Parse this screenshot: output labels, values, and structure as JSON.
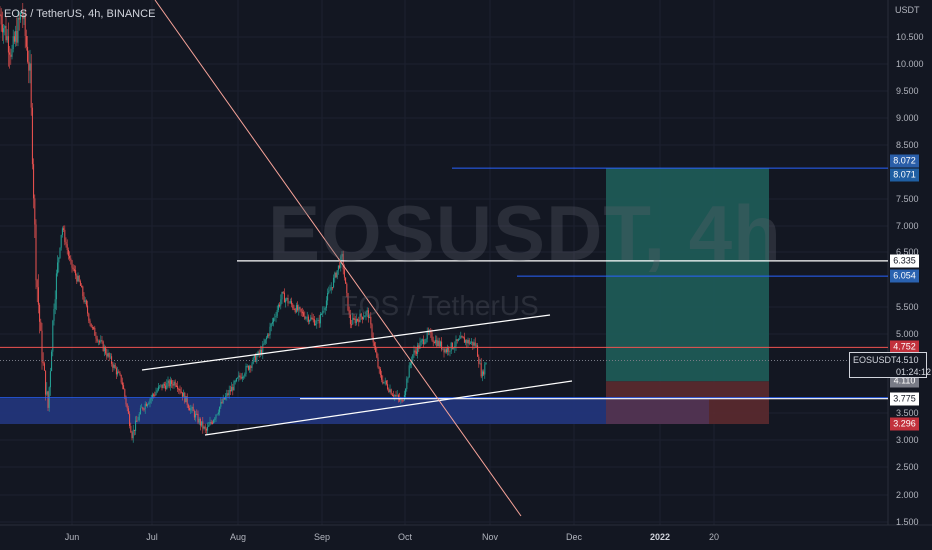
{
  "header": {
    "symbol_label": "EOS / TetherUS, 4h, BINANCE"
  },
  "watermark": {
    "ticker": "EOSUSDT, 4h",
    "pair": "EOS / TetherUS"
  },
  "price_axis": {
    "unit": "USDT",
    "ticks": [
      {
        "label": "10.500",
        "value": 10.5
      },
      {
        "label": "10.000",
        "value": 10.0
      },
      {
        "label": "9.500",
        "value": 9.5
      },
      {
        "label": "9.000",
        "value": 9.0
      },
      {
        "label": "8.500",
        "value": 8.5
      },
      {
        "label": "7.500",
        "value": 7.5
      },
      {
        "label": "7.000",
        "value": 7.0
      },
      {
        "label": "6.500",
        "value": 6.5
      },
      {
        "label": "5.500",
        "value": 5.5
      },
      {
        "label": "5.000",
        "value": 5.0
      },
      {
        "label": "3.500",
        "value": 3.5
      },
      {
        "label": "3.000",
        "value": 3.0
      },
      {
        "label": "2.500",
        "value": 2.5
      },
      {
        "label": "2.000",
        "value": 2.0
      },
      {
        "label": "1.500",
        "value": 1.5
      }
    ]
  },
  "time_axis": {
    "ticks": [
      {
        "label": "Jun",
        "bold": false
      },
      {
        "label": "Jul",
        "bold": false
      },
      {
        "label": "Aug",
        "bold": false
      },
      {
        "label": "Sep",
        "bold": false
      },
      {
        "label": "Oct",
        "bold": false
      },
      {
        "label": "Nov",
        "bold": false
      },
      {
        "label": "Dec",
        "bold": false
      },
      {
        "label": "2022",
        "bold": true
      },
      {
        "label": "20",
        "bold": false
      }
    ]
  },
  "price_labels": [
    {
      "text": "8.072",
      "value": 8.072,
      "bg": "#2a5ea8",
      "fg": "#ffffff"
    },
    {
      "text": "8.071",
      "value": 8.071,
      "bg": "#1f5fa3",
      "fg": "#ffffff"
    },
    {
      "text": "6.335",
      "value": 6.335,
      "bg": "#ffffff",
      "fg": "#131722"
    },
    {
      "text": "6.054",
      "value": 6.054,
      "bg": "#2a62b0",
      "fg": "#ffffff"
    },
    {
      "text": "4.752",
      "value": 4.752,
      "bg": "#c2313c",
      "fg": "#ffffff"
    },
    {
      "text": "4.110",
      "value": 4.11,
      "bg": "#787b86",
      "fg": "#ffffff"
    },
    {
      "text": "3.775",
      "value": 3.775,
      "bg": "#ffffff",
      "fg": "#131722"
    },
    {
      "text": "3.296",
      "value": 3.296,
      "bg": "#c2313c",
      "fg": "#ffffff"
    }
  ],
  "last_price_tag": {
    "symbol": "EOSUSDT",
    "price": "4.510",
    "countdown": "01:24:12"
  },
  "colors": {
    "background": "#131722",
    "candle_up": "#26a69a",
    "candle_down": "#ef5350",
    "trendline": "#ffffff",
    "resistance_line": "#ef5350",
    "target_line": "#2962ff",
    "diagonal_line": "#f7a399",
    "profit_zone": "#1e5a56",
    "loss_zone": "#5c2a2f",
    "demand_zone": "#22357a"
  },
  "position_tool": {
    "entry": 4.11,
    "target": 8.071,
    "stop": 3.296
  }
}
